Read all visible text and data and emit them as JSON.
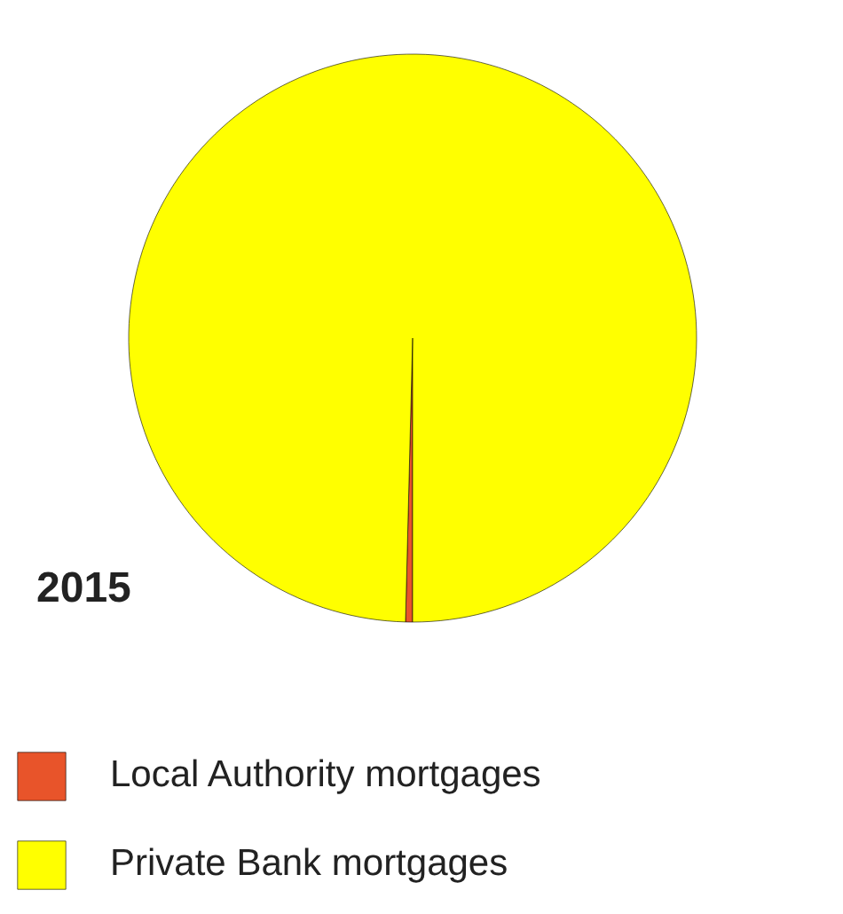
{
  "chart_data": {
    "type": "pie",
    "title": "2015",
    "categories": [
      "Local Authority mortgages",
      "Private Bank mortgages"
    ],
    "values": [
      0.4,
      99.6
    ],
    "colors": [
      "#e8542a",
      "#ffff00"
    ],
    "legend": "bottom"
  }
}
